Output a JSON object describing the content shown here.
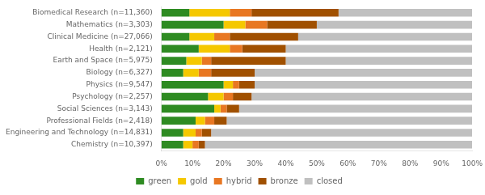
{
  "chart_data": {
    "type": "bar",
    "orientation": "horizontal",
    "stacked": true,
    "categories": [
      "Biomedical Research (n=11,360)",
      "Mathematics (n=3,303)",
      "Clinical Medicine (n=27,066)",
      "Health (n=2,121)",
      "Earth and Space (n=5,975)",
      "Biology (n=6,327)",
      "Physics (n=9,547)",
      "Psychology (n=2,257)",
      "Social Sciences (n=3,143)",
      "Professional Fields (n=2,418)",
      "Engineering and Technology (n=14,831)",
      "Chemistry (n=10,397)"
    ],
    "series": [
      {
        "name": "green",
        "color": "#2e8b22",
        "values": [
          9,
          20,
          9,
          12,
          8,
          7,
          20,
          15,
          17,
          11,
          7,
          7
        ]
      },
      {
        "name": "gold",
        "color": "#f5c800",
        "values": [
          13,
          7,
          8,
          10,
          5,
          5,
          3,
          5,
          2,
          3,
          4,
          3
        ]
      },
      {
        "name": "hybrid",
        "color": "#e87722",
        "values": [
          7,
          7,
          5,
          4,
          3,
          4,
          2,
          3,
          2,
          3,
          2,
          2
        ]
      },
      {
        "name": "bronze",
        "color": "#a05000",
        "values": [
          28,
          16,
          22,
          14,
          24,
          14,
          5,
          6,
          4,
          4,
          3,
          2
        ]
      },
      {
        "name": "closed",
        "color": "#c0c0c0",
        "values": [
          43,
          50,
          56,
          60,
          60,
          70,
          70,
          71,
          75,
          79,
          84,
          86
        ]
      }
    ],
    "xlim": [
      0,
      100
    ],
    "xticks": [
      {
        "value": 0,
        "label": "0%"
      },
      {
        "value": 10,
        "label": "10%"
      },
      {
        "value": 20,
        "label": "20%"
      },
      {
        "value": 30,
        "label": "30%"
      },
      {
        "value": 40,
        "label": "40%"
      },
      {
        "value": 50,
        "label": "50%"
      },
      {
        "value": 60,
        "label": "60%"
      },
      {
        "value": 70,
        "label": "70%"
      },
      {
        "value": 80,
        "label": "80%"
      },
      {
        "value": 90,
        "label": "90%"
      },
      {
        "value": 100,
        "label": "100%"
      }
    ],
    "grid": false,
    "legend": "bottom"
  }
}
